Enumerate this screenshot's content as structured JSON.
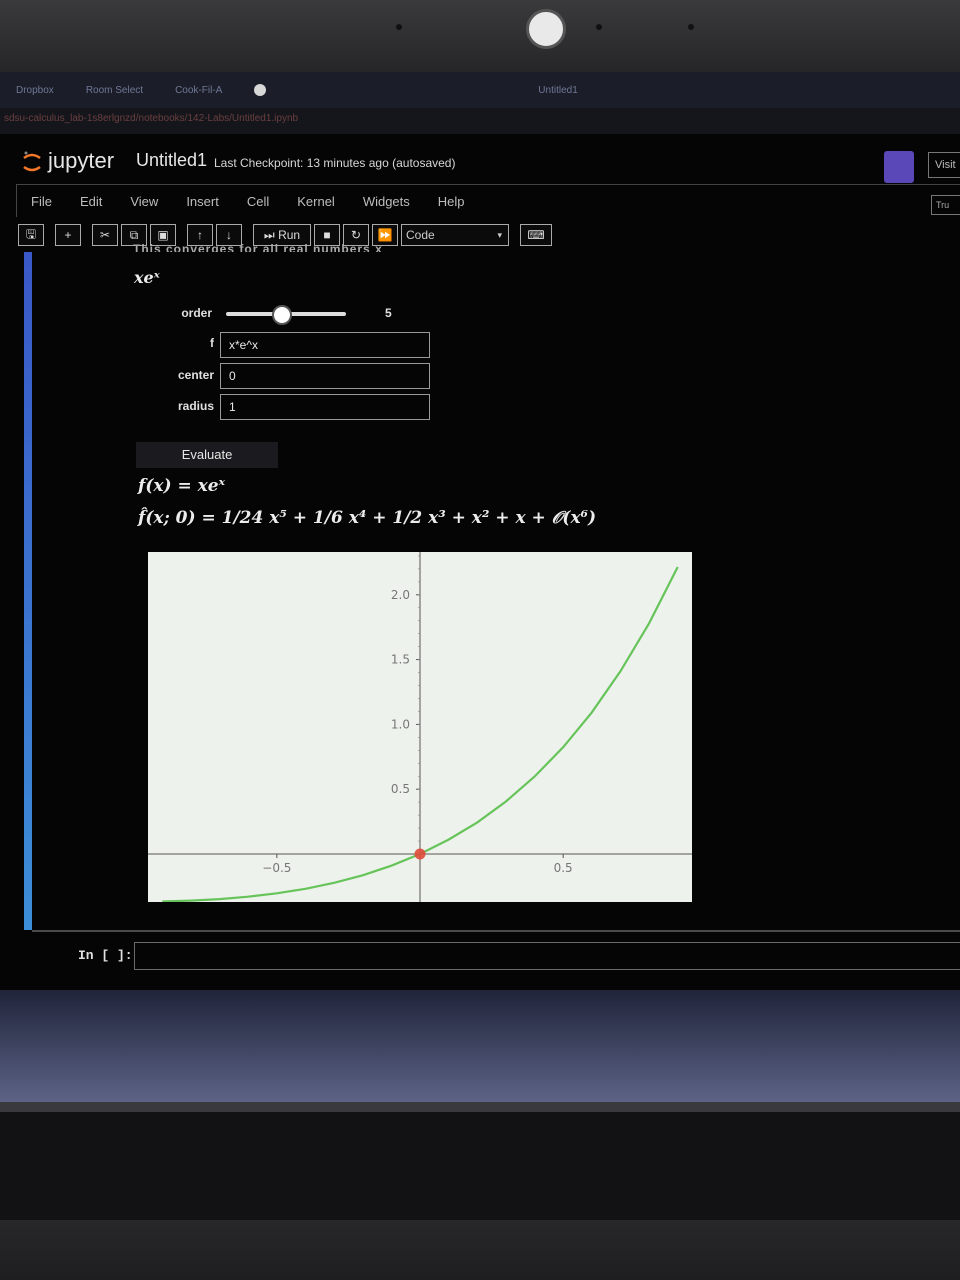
{
  "browser": {
    "tabs": [
      "Dropbox",
      "Room Select",
      "Cook-Fil-A",
      "",
      "",
      "",
      "Untitled1"
    ],
    "url": "sdsu-calculus_lab-1s8erlgnzd/notebooks/142-Labs/Untitled1.ipynb"
  },
  "jupyter": {
    "brand": "jupyter",
    "notebook_name": "Untitled1",
    "checkpoint": "Last Checkpoint: 13 minutes ago  (autosaved)",
    "visit_label": "Visit",
    "trusted_label": "Tru"
  },
  "menu": [
    "File",
    "Edit",
    "View",
    "Insert",
    "Cell",
    "Kernel",
    "Widgets",
    "Help"
  ],
  "toolbar": {
    "run_label": "Run",
    "cell_type": "Code"
  },
  "cell": {
    "cut_text": "This converges for all real numbers x",
    "function_title": "xeˣ",
    "widgets": {
      "order_label": "order",
      "order_value": "5",
      "order_fraction": 0.45,
      "f_label": "f",
      "f_value": "x*e^x",
      "center_label": "center",
      "center_value": "0",
      "radius_label": "radius",
      "radius_value": "1",
      "evaluate_label": "Evaluate"
    },
    "math_line1": "f(x) = xeˣ",
    "math_line2": "f̂(x; 0) = 1/24 x⁵ + 1/6 x⁴ + 1/2 x³ + x² + x + 𝒪(x⁶)"
  },
  "chart_data": {
    "type": "line",
    "title": "",
    "xlabel": "",
    "ylabel": "",
    "xlim": [
      -0.95,
      0.95
    ],
    "ylim": [
      -0.37,
      2.33
    ],
    "x_ticks": [
      -0.5,
      0.5
    ],
    "x_tick_labels": [
      "−0.5",
      "0.5"
    ],
    "y_ticks": [
      0.5,
      1.0,
      1.5,
      2.0
    ],
    "y_tick_labels": [
      "0.5",
      "1.0",
      "1.5",
      "2.0"
    ],
    "series": [
      {
        "color": "#66c45a",
        "x": [
          -0.9,
          -0.8,
          -0.7,
          -0.6,
          -0.5,
          -0.4,
          -0.3,
          -0.2,
          -0.1,
          0,
          0.1,
          0.2,
          0.3,
          0.4,
          0.5,
          0.6,
          0.7,
          0.8,
          0.9
        ],
        "y": [
          -0.366,
          -0.359,
          -0.348,
          -0.329,
          -0.303,
          -0.268,
          -0.222,
          -0.164,
          -0.09,
          0,
          0.111,
          0.244,
          0.405,
          0.597,
          0.824,
          1.093,
          1.41,
          1.78,
          2.214
        ]
      }
    ],
    "highlight_point": {
      "x": 0,
      "y": 0,
      "color": "#e04a3a"
    },
    "grid": false
  },
  "next_cell": {
    "prompt": "In [ ]:"
  }
}
